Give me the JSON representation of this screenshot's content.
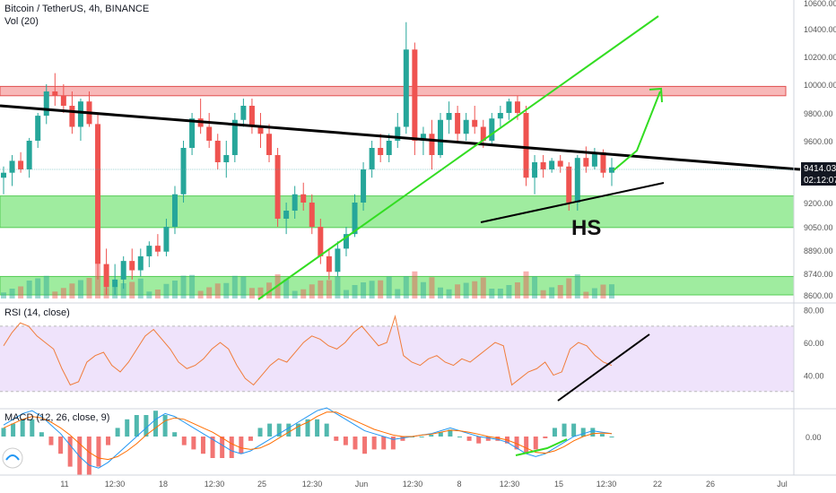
{
  "header": {
    "symbol": "Bitcoin / TetherUS, 4h, BINANCE",
    "volume": "Vol (20)"
  },
  "rsi_label": "RSI (14, close)",
  "macd_label": "MACD (12, 26, close, 9)",
  "annotation_hs": "HS",
  "price_badge": {
    "price": "9414.03",
    "timer": "02:12:07"
  },
  "colors": {
    "up": "#26a69a",
    "down": "#ef5350",
    "trend_green": "#33dd22",
    "resistance": "#f5a0a0",
    "support": "#7fe67f",
    "rsi_fill": "#efe3fb",
    "rsi_line": "#f07c3a",
    "macd_line": "#2196f3",
    "signal_line": "#ff6d00"
  },
  "chart_data": [
    {
      "type": "candlestick",
      "title": "Bitcoin / TetherUS, 4h, BINANCE",
      "x_tick_labels": [
        "11",
        "12:30",
        "18",
        "12:30",
        "25",
        "12:30",
        "Jun",
        "12:30",
        "8",
        "12:30",
        "15",
        "12:30",
        "22",
        "26",
        "Jul"
      ],
      "y_tick_labels": [
        "8600.00",
        "8740.00",
        "8890.00",
        "9050.00",
        "9200.00",
        "9400.00",
        "9600.00",
        "9800.00",
        "10000.00",
        "10200.00",
        "10400.00",
        "10600.00"
      ],
      "ylim": [
        8590,
        10640
      ],
      "last_price": 9414.03,
      "grid": false,
      "zones": [
        {
          "kind": "resistance",
          "y": [
            9920,
            9985
          ]
        },
        {
          "kind": "support",
          "y": [
            9045,
            9240
          ]
        },
        {
          "kind": "support",
          "y": [
            8600,
            8720
          ]
        }
      ],
      "candles_ohlc": [
        [
          9350,
          9420,
          9250,
          9380
        ],
        [
          9380,
          9500,
          9300,
          9460
        ],
        [
          9460,
          9520,
          9380,
          9400
        ],
        [
          9400,
          9620,
          9350,
          9600
        ],
        [
          9600,
          9800,
          9550,
          9780
        ],
        [
          9780,
          10000,
          9720,
          9950
        ],
        [
          9950,
          10080,
          9850,
          9920
        ],
        [
          9920,
          10000,
          9800,
          9850
        ],
        [
          9850,
          9950,
          9650,
          9700
        ],
        [
          9700,
          9900,
          9600,
          9880
        ],
        [
          9880,
          9950,
          9700,
          9720
        ],
        [
          9720,
          9800,
          8700,
          8800
        ],
        [
          8800,
          8900,
          8600,
          8650
        ],
        [
          8650,
          8800,
          8600,
          8700
        ],
        [
          8700,
          8850,
          8640,
          8820
        ],
        [
          8820,
          8900,
          8700,
          8760
        ],
        [
          8760,
          8900,
          8720,
          8850
        ],
        [
          8850,
          8950,
          8780,
          8920
        ],
        [
          8920,
          9000,
          8850,
          8880
        ],
        [
          8880,
          9100,
          8850,
          9050
        ],
        [
          9050,
          9300,
          9000,
          9250
        ],
        [
          9250,
          9600,
          9200,
          9550
        ],
        [
          9550,
          9800,
          9500,
          9760
        ],
        [
          9760,
          9900,
          9650,
          9700
        ],
        [
          9700,
          9800,
          9550,
          9600
        ],
        [
          9600,
          9650,
          9400,
          9450
        ],
        [
          9450,
          9600,
          9350,
          9500
        ],
        [
          9500,
          9800,
          9450,
          9750
        ],
        [
          9750,
          9900,
          9700,
          9850
        ],
        [
          9850,
          9900,
          9650,
          9700
        ],
        [
          9700,
          9800,
          9550,
          9650
        ],
        [
          9650,
          9720,
          9450,
          9500
        ],
        [
          9500,
          9550,
          9050,
          9100
        ],
        [
          9100,
          9200,
          9000,
          9150
        ],
        [
          9150,
          9300,
          9100,
          9250
        ],
        [
          9250,
          9320,
          9150,
          9200
        ],
        [
          9200,
          9250,
          9000,
          9050
        ],
        [
          9050,
          9100,
          8800,
          8850
        ],
        [
          8850,
          8900,
          8700,
          8750
        ],
        [
          8750,
          8950,
          8720,
          8900
        ],
        [
          8900,
          9050,
          8850,
          9000
        ],
        [
          9000,
          9250,
          8980,
          9200
        ],
        [
          9200,
          9450,
          9150,
          9400
        ],
        [
          9400,
          9600,
          9350,
          9550
        ],
        [
          9550,
          9650,
          9450,
          9500
        ],
        [
          9500,
          9650,
          9450,
          9600
        ],
        [
          9600,
          9800,
          9550,
          9700
        ],
        [
          9700,
          10450,
          9650,
          10250
        ],
        [
          10250,
          10300,
          9500,
          9600
        ],
        [
          9600,
          9700,
          9500,
          9650
        ],
        [
          9650,
          9750,
          9400,
          9500
        ],
        [
          9500,
          9800,
          9480,
          9750
        ],
        [
          9750,
          9880,
          9650,
          9800
        ],
        [
          9800,
          9850,
          9600,
          9650
        ],
        [
          9650,
          9800,
          9600,
          9750
        ],
        [
          9750,
          9850,
          9650,
          9700
        ],
        [
          9700,
          9750,
          9550,
          9600
        ],
        [
          9600,
          9800,
          9580,
          9760
        ],
        [
          9760,
          9850,
          9700,
          9800
        ],
        [
          9800,
          9900,
          9750,
          9880
        ],
        [
          9880,
          9920,
          9750,
          9800
        ],
        [
          9800,
          9850,
          9300,
          9350
        ],
        [
          9350,
          9500,
          9250,
          9450
        ],
        [
          9450,
          9500,
          9350,
          9400
        ],
        [
          9400,
          9480,
          9380,
          9460
        ],
        [
          9460,
          9500,
          9380,
          9420
        ],
        [
          9420,
          9450,
          9150,
          9200
        ],
        [
          9200,
          9500,
          9150,
          9480
        ],
        [
          9480,
          9560,
          9380,
          9420
        ],
        [
          9420,
          9550,
          9400,
          9520
        ],
        [
          9520,
          9540,
          9350,
          9380
        ],
        [
          9380,
          9480,
          9300,
          9414.03
        ]
      ]
    },
    {
      "type": "line",
      "title": "RSI (14, close)",
      "y_tick_labels": [
        "40.00",
        "60.00",
        "80.00"
      ],
      "ylim": [
        20,
        82
      ],
      "band": [
        30,
        70
      ],
      "x_tick_labels": [],
      "values": [
        58,
        66,
        72,
        70,
        64,
        60,
        56,
        44,
        34,
        36,
        48,
        52,
        54,
        46,
        42,
        48,
        56,
        64,
        68,
        62,
        56,
        48,
        44,
        46,
        50,
        56,
        60,
        56,
        46,
        38,
        34,
        40,
        46,
        50,
        48,
        54,
        60,
        64,
        62,
        58,
        56,
        60,
        66,
        70,
        64,
        58,
        60,
        76,
        52,
        48,
        46,
        50,
        52,
        48,
        46,
        50,
        48,
        52,
        56,
        60,
        58,
        34,
        38,
        42,
        44,
        48,
        40,
        42,
        56,
        60,
        58,
        52,
        48,
        46
      ]
    },
    {
      "type": "line",
      "title": "MACD (12, 26, close, 9)",
      "y_tick_labels": [
        "0.00"
      ],
      "series": [
        {
          "values": [
            40,
            60,
            80,
            90,
            70,
            40,
            10,
            -30,
            -70,
            -100,
            -110,
            -90,
            -60,
            -30,
            0,
            30,
            60,
            80,
            70,
            50,
            30,
            10,
            -10,
            -30,
            -50,
            -60,
            -50,
            -30,
            -10,
            10,
            30,
            50,
            70,
            90,
            100,
            80,
            60,
            40,
            20,
            10,
            0,
            -10,
            -5,
            0,
            5,
            10,
            20,
            30,
            20,
            10,
            0,
            -5,
            -10,
            -20,
            -40,
            -60,
            -70,
            -60,
            -40,
            -20,
            0,
            10,
            20,
            15,
            10
          ]
        },
        {
          "values": [
            30,
            45,
            60,
            70,
            65,
            50,
            30,
            5,
            -25,
            -55,
            -75,
            -80,
            -70,
            -50,
            -25,
            5,
            30,
            55,
            65,
            60,
            45,
            30,
            15,
            -5,
            -25,
            -40,
            -45,
            -40,
            -25,
            -5,
            15,
            35,
            50,
            70,
            85,
            85,
            70,
            55,
            40,
            25,
            15,
            5,
            0,
            0,
            5,
            8,
            15,
            22,
            20,
            15,
            8,
            0,
            -5,
            -12,
            -25,
            -40,
            -55,
            -58,
            -50,
            -35,
            -15,
            0,
            10,
            12,
            10
          ]
        }
      ],
      "histogram": [
        10,
        15,
        20,
        20,
        5,
        -10,
        -20,
        -35,
        -45,
        -45,
        -35,
        -10,
        10,
        20,
        25,
        25,
        30,
        25,
        5,
        -10,
        -15,
        -20,
        -25,
        -25,
        -25,
        -20,
        -5,
        10,
        15,
        15,
        15,
        15,
        20,
        20,
        15,
        -5,
        -10,
        -15,
        -20,
        -15,
        -15,
        -15,
        -5,
        0,
        0,
        2,
        5,
        8,
        0,
        -5,
        -8,
        -5,
        -5,
        -8,
        -15,
        -20,
        -15,
        -2,
        10,
        15,
        15,
        10,
        10,
        3,
        0
      ]
    }
  ]
}
